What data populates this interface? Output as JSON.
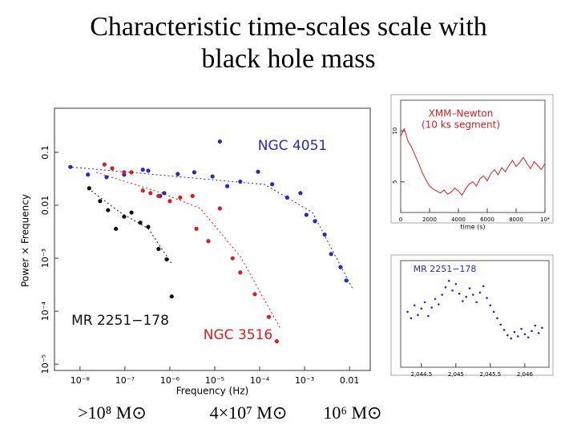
{
  "title": [
    "Characteristic time-scales scale with",
    "black hole mass"
  ],
  "captions": [
    ">10⁸ M⊙",
    "4×10⁷ M⊙",
    "10⁶ M⊙"
  ],
  "chart_data": [
    {
      "type": "scatter",
      "xlabel": "Frequency (Hz)",
      "ylabel": "Power × Frequency",
      "log_x": true,
      "log_y": true,
      "xlim": [
        2.7e-09,
        0.029
      ],
      "ylim": [
        7.6e-06,
        0.68
      ],
      "xticks": [
        {
          "value": 1e-08,
          "label": "10⁻⁸"
        },
        {
          "value": 1e-07,
          "label": "10⁻⁷"
        },
        {
          "value": 1e-06,
          "label": "10⁻⁶"
        },
        {
          "value": 1e-05,
          "label": "10⁻⁵"
        },
        {
          "value": 0.0001,
          "label": "10⁻⁴"
        },
        {
          "value": 0.001,
          "label": "10⁻³"
        },
        0.01
      ],
      "yticks": [
        0.1,
        0.01,
        {
          "value": 0.001,
          "label": "10⁻³"
        },
        {
          "value": 0.0001,
          "label": "10⁻⁴"
        },
        {
          "value": 1e-05,
          "label": "10⁻⁵"
        }
      ],
      "series": [
        {
          "name": "NGC 4051",
          "color": "#2a2ab8",
          "x": [
            6.1e-09,
            1.5e-08,
            3.9e-08,
            9.6e-08,
            2.5e-07,
            3.3e-07,
            6.1e-07,
            7.5e-07,
            1.5e-06,
            3.5e-06,
            8.9e-06,
            1.3e-05,
            1.9e-05,
            3.7e-05,
            9.2e-05,
            0.00019,
            0.00041,
            0.00081,
            0.0011,
            0.0017,
            0.0028,
            0.0039,
            0.0063,
            0.0085
          ],
          "values": [
            0.053,
            0.038,
            0.034,
            0.038,
            0.047,
            0.045,
            0.015,
            0.017,
            0.039,
            0.042,
            0.035,
            0.16,
            0.023,
            0.028,
            0.043,
            0.025,
            0.014,
            0.017,
            0.0066,
            0.005,
            0.0028,
            0.0012,
            0.00068,
            0.00038
          ]
        },
        {
          "name": "MR 2251−178",
          "color": "#111111",
          "x": [
            1.6e-08,
            2.8e-08,
            4.2e-08,
            6.3e-08,
            9.6e-08,
            1.4e-07,
            2.2e-07,
            3.3e-07,
            5.6e-07,
            8.5e-07,
            1.1e-06
          ],
          "values": [
            0.021,
            0.012,
            0.0081,
            0.0036,
            0.0061,
            0.0073,
            0.0047,
            0.0039,
            0.0015,
            0.00095,
            0.00019
          ]
        },
        {
          "name": "NGC 3516",
          "color": "#d42020",
          "x": [
            3.5e-08,
            5.2e-08,
            9.6e-08,
            1.4e-07,
            2.5e-07,
            3.7e-07,
            5.6e-07,
            1e-06,
            1.7e-06,
            3.2e-06,
            3.9e-06,
            7.2e-06,
            1.3e-05,
            2.5e-05,
            3.7e-05,
            7.8e-05,
            0.00016,
            0.00024
          ],
          "values": [
            0.059,
            0.05,
            0.042,
            0.042,
            0.019,
            0.017,
            0.015,
            0.012,
            0.014,
            0.015,
            0.0036,
            0.0021,
            0.0087,
            0.001,
            0.00054,
            0.00021,
            7.8e-05,
            2.7e-05
          ]
        }
      ]
    },
    {
      "type": "line",
      "annotations": [
        "XMM–Newton",
        "(10 ks segment)"
      ],
      "xlabel": "time (s)",
      "xlim": [
        0,
        10000
      ],
      "ylim": [
        2,
        13
      ],
      "xticks": [
        0,
        2000,
        4000,
        6000,
        8000,
        {
          "value": 10000,
          "label": "10⁴"
        }
      ],
      "yticks": [
        5,
        10
      ],
      "series": [
        {
          "color": "#d42020",
          "x": [
            0,
            250,
            500,
            750,
            1000,
            1250,
            1500,
            1750,
            2000,
            2250,
            2500,
            2750,
            3000,
            3250,
            3500,
            3750,
            4000,
            4250,
            4500,
            4750,
            5000,
            5250,
            5500,
            5750,
            6000,
            6250,
            6500,
            6750,
            7000,
            7250,
            7500,
            7750,
            8000,
            8250,
            8500,
            8750,
            9000,
            9250,
            9500,
            9750,
            10000
          ],
          "values": [
            9.5,
            10.2,
            9.0,
            8.4,
            7.6,
            6.8,
            5.9,
            5.2,
            4.6,
            4.3,
            4.1,
            3.9,
            4.2,
            3.8,
            4.0,
            4.4,
            4.1,
            3.7,
            4.3,
            4.8,
            5.0,
            4.6,
            5.3,
            5.6,
            5.1,
            5.8,
            6.2,
            5.7,
            6.4,
            6.0,
            6.6,
            7.1,
            6.5,
            6.9,
            7.4,
            6.8,
            6.3,
            7.0,
            6.6,
            6.2,
            6.8
          ]
        }
      ]
    },
    {
      "type": "scatter",
      "annotations": [
        "MR 2251−178"
      ],
      "xlim": [
        2044.2,
        2046.35
      ],
      "ylim": [
        0,
        10
      ],
      "xticks": [
        {
          "value": 2044.5,
          "label": "2,044.5"
        },
        {
          "value": 2045,
          "label": "2,045"
        },
        {
          "value": 2045.5,
          "label": "2,045.5"
        },
        {
          "value": 2046,
          "label": "2,046"
        }
      ],
      "series": [
        {
          "color": "#2a2ab8",
          "x": [
            2044.3,
            2044.35,
            2044.4,
            2044.45,
            2044.5,
            2044.55,
            2044.6,
            2044.65,
            2044.7,
            2044.75,
            2044.8,
            2044.85,
            2044.9,
            2044.95,
            2045,
            2045.05,
            2045.1,
            2045.15,
            2045.2,
            2045.25,
            2045.3,
            2045.35,
            2045.4,
            2045.45,
            2045.5,
            2045.55,
            2045.6,
            2045.65,
            2045.7,
            2045.75,
            2045.8,
            2045.85,
            2045.9,
            2045.95,
            2046,
            2046.05,
            2046.1,
            2046.15,
            2046.2,
            2046.25
          ],
          "values": [
            5.2,
            4.6,
            5.8,
            4.9,
            5.5,
            6.1,
            4.8,
            5.6,
            6.4,
            5.9,
            6.8,
            7.5,
            8.1,
            7.2,
            7.8,
            6.9,
            6.2,
            6.6,
            7.4,
            6.8,
            6.1,
            7.0,
            7.6,
            6.5,
            5.8,
            5.2,
            4.6,
            4.0,
            3.5,
            3.0,
            2.7,
            3.3,
            2.9,
            3.6,
            3.1,
            2.8,
            3.4,
            3.9,
            3.2,
            3.7
          ]
        }
      ]
    }
  ]
}
